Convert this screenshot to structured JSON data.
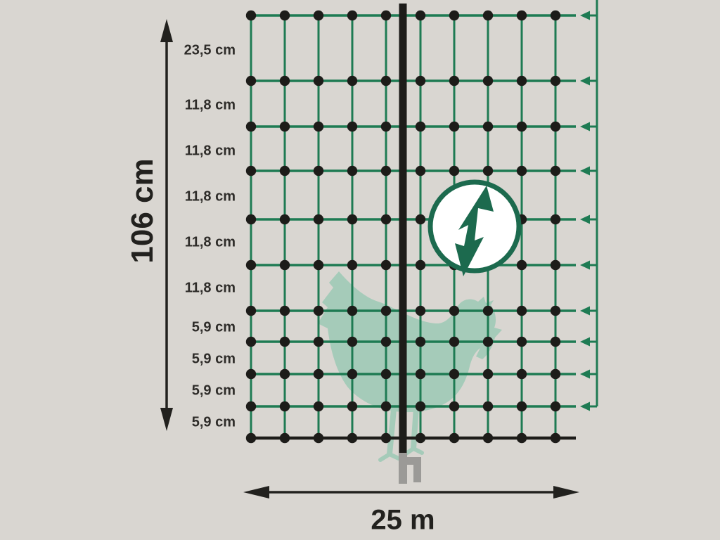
{
  "dimensions": {
    "height_label": "106 cm",
    "width_label": "25 m"
  },
  "measurements": {
    "row_labels": [
      "23,5 cm",
      "11,8 cm",
      "11,8 cm",
      "11,8 cm",
      "11,8 cm",
      "11,8 cm",
      "5,9 cm",
      "5,9 cm",
      "5,9 cm",
      "5,9 cm"
    ]
  },
  "net": {
    "horizontal_strands": 11,
    "vertical_strands": 10,
    "electrified_strand_arrows": 10,
    "bottom_strand": "non-electrified black strand"
  },
  "icons": {
    "warning": "electric-lightning-bolt-circle",
    "animal": "chicken-silhouette",
    "post": "fence-post-with-double-ground-stake"
  },
  "colors": {
    "background": "#d9d6d1",
    "net_green": "#1e7b53",
    "icon_green": "#1c6a4e",
    "chicken_green": "#a5cbb9",
    "black": "#1d1c19",
    "stake_gray": "#9b9a97",
    "text": "#2e2c29"
  }
}
